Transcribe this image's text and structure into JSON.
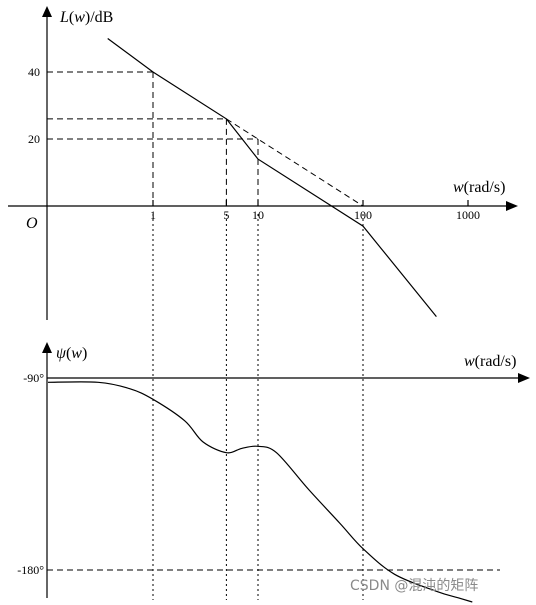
{
  "chart_data": [
    {
      "type": "line",
      "name_text": "bode-magnitude",
      "ylabel_var": "L",
      "ylabel_arg": "w",
      "ylabel_unit": "/dB",
      "xlabel_var": "w",
      "xlabel_unit": "(rad/s)",
      "origin_label": "O",
      "x_scale": "log",
      "x_ticks": [
        1,
        5,
        10,
        100,
        1000
      ],
      "x_tick_labels": [
        "1",
        "5",
        "10",
        "100",
        "1000"
      ],
      "y_ticks": [
        20,
        40
      ],
      "y_tick_labels": [
        "20",
        "40"
      ],
      "asymptote": {
        "x": [
          0.37,
          1,
          5,
          10,
          100,
          500
        ],
        "y": [
          50,
          40,
          26,
          14,
          -6,
          -33
        ]
      },
      "dashed_extension": {
        "x": [
          5,
          100
        ],
        "y": [
          26,
          0
        ]
      },
      "guides": [
        {
          "x": 1,
          "y": 40
        },
        {
          "x": 5,
          "y": 26
        },
        {
          "x": 10,
          "y": 20
        }
      ]
    },
    {
      "type": "line",
      "name_text": "bode-phase",
      "ylabel_var": "ψ",
      "ylabel_arg": "w",
      "xlabel_var": "w",
      "xlabel_unit": "(rad/s)",
      "x_scale": "log",
      "y_ticks": [
        -90,
        -180
      ],
      "y_tick_labels": [
        "-90°",
        "-180°"
      ],
      "curve": {
        "x": [
          0.1,
          0.3,
          0.6,
          1,
          2,
          3,
          5,
          7,
          10,
          15,
          30,
          60,
          100,
          200,
          500,
          800,
          1100
        ],
        "y": [
          -92,
          -92,
          -95,
          -100,
          -110,
          -120,
          -125,
          -123,
          -122,
          -125,
          -142,
          -158,
          -170,
          -182,
          -190,
          -193,
          -195
        ]
      }
    }
  ],
  "watermark": "CSDN @混沌的矩阵"
}
